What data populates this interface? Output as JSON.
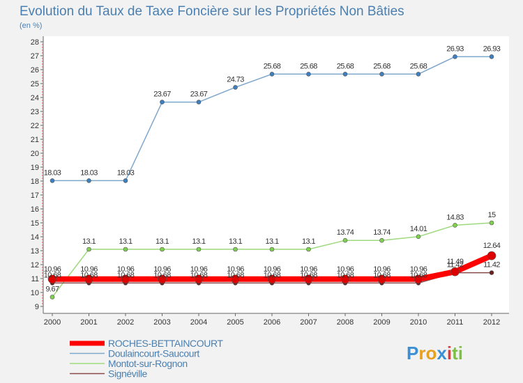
{
  "chart_data": {
    "type": "line",
    "title": "Evolution du Taux de Taxe Foncière sur les Propriétés Non Bâties",
    "subtitle": "(en %)",
    "xlabel": "",
    "ylabel": "",
    "ylim": [
      9,
      28
    ],
    "yticks": [
      "9",
      "10",
      "11",
      "12",
      "13",
      "14",
      "15",
      "16",
      "17",
      "18",
      "19",
      "20",
      "21",
      "22",
      "23",
      "24",
      "25",
      "26",
      "27",
      "28"
    ],
    "categories": [
      "2000",
      "2001",
      "2002",
      "2003",
      "2004",
      "2005",
      "2006",
      "2007",
      "2008",
      "2009",
      "2010",
      "2011",
      "2012"
    ],
    "series": [
      {
        "name": "Doulaincourt-Saucourt",
        "color": "#7ea7cc",
        "marker": "#3d7fbf",
        "width": 1.5,
        "radius": 3,
        "values": [
          18.03,
          18.03,
          18.03,
          23.67,
          23.67,
          24.73,
          25.68,
          25.68,
          25.68,
          25.68,
          25.68,
          26.93,
          26.93
        ],
        "labels": [
          "18.03",
          "18.03",
          "18.03",
          "23.67",
          "23.67",
          "24.73",
          "25.68",
          "25.68",
          "25.68",
          "25.68",
          "25.68",
          "26.93",
          "26.93"
        ]
      },
      {
        "name": "Montot-sur-Rognon",
        "color": "#9ed97e",
        "marker": "#7fd04f",
        "width": 1.5,
        "radius": 3,
        "values": [
          9.67,
          13.1,
          13.1,
          13.1,
          13.1,
          13.1,
          13.1,
          13.1,
          13.74,
          13.74,
          14.01,
          14.83,
          15
        ],
        "labels": [
          "9.67",
          "13.1",
          "13.1",
          "13.1",
          "13.1",
          "13.1",
          "13.1",
          "13.1",
          "13.74",
          "13.74",
          "14.01",
          "14.83",
          "15"
        ]
      },
      {
        "name": "Signéville",
        "color": "#8a4a4a",
        "marker": "#6b1f1f",
        "width": 1.5,
        "radius": 3,
        "values": [
          10.68,
          10.68,
          10.68,
          10.68,
          10.68,
          10.68,
          10.68,
          10.68,
          10.68,
          10.68,
          10.68,
          11.42,
          11.42
        ],
        "labels": [
          "10.68",
          "10.68",
          "10.68",
          "10.68",
          "10.68",
          "10.68",
          "10.68",
          "10.68",
          "10.68",
          "10.68",
          "10.68",
          "11.42",
          "11.42"
        ]
      },
      {
        "name": "ROCHES-BETTAINCOURT",
        "color": "#ff0000",
        "marker": "#dd0000",
        "width": 8,
        "radius": 6,
        "values": [
          10.96,
          10.96,
          10.96,
          10.96,
          10.96,
          10.96,
          10.96,
          10.96,
          10.96,
          10.96,
          10.96,
          11.49,
          12.64
        ],
        "labels": [
          "10.96",
          "10.96",
          "10.96",
          "10.96",
          "10.96",
          "10.96",
          "10.96",
          "10.96",
          "10.96",
          "10.96",
          "10.96",
          "11.49",
          "12.64"
        ]
      }
    ],
    "legend": [
      "ROCHES-BETTAINCOURT",
      "Doulaincourt-Saucourt",
      "Montot-sur-Rognon",
      "Signéville"
    ],
    "legend_position": "bottom-left",
    "grid": false
  },
  "logo": {
    "letters": [
      "P",
      "r",
      "o",
      "x",
      "i",
      "t",
      "i"
    ],
    "colors": [
      "#3b8fd4",
      "#e8a020",
      "#e8a020",
      "#3b8fd4",
      "#e23a3a",
      "#7cc242",
      "#7cc242"
    ]
  }
}
